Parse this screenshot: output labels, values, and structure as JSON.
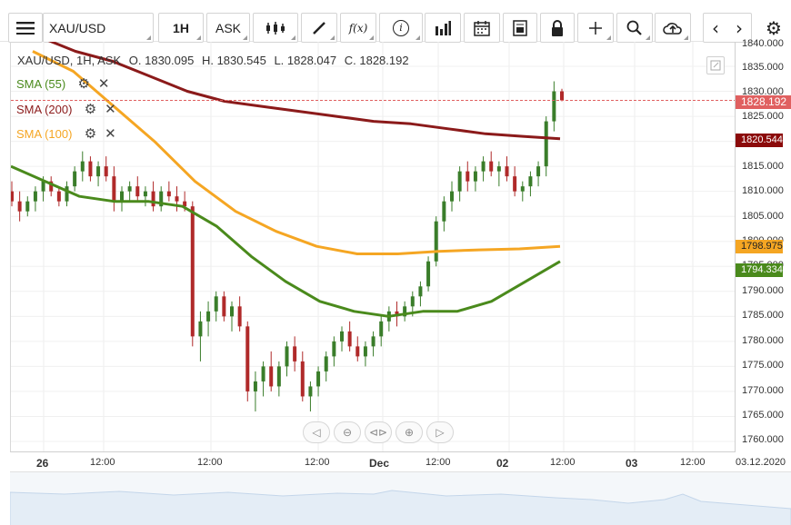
{
  "toolbar": {
    "symbol": "XAU/USD",
    "timeframe": "1H",
    "price_side": "ASK",
    "function_label": "f(x)",
    "info_label": "i"
  },
  "ohlc": {
    "symbol_text": "XAU/USD, 1H, ASK",
    "open": "O. 1830.095",
    "high": "H. 1830.545",
    "low": "L. 1828.047",
    "close": "C. 1828.192"
  },
  "indicators": [
    {
      "name": "SMA (55)",
      "color": "#4a8a1c"
    },
    {
      "name": "SMA (200)",
      "color": "#8b1a1a"
    },
    {
      "name": "SMA (100)",
      "color": "#f5a623"
    }
  ],
  "price_axis": {
    "top_partial": "1840.000",
    "labels": [
      "1835.000",
      "1830.000",
      "1825.000",
      "1815.000",
      "1810.000",
      "1805.000",
      "1800.000",
      "1795.000",
      "1790.000",
      "1785.000",
      "1780.000",
      "1775.000",
      "1770.000",
      "1765.000",
      "1760.000"
    ],
    "tags": [
      {
        "text": "1828.192",
        "color": "#e06060"
      },
      {
        "text": "1820.544",
        "color": "#8b0a0a"
      },
      {
        "text": "1798.975",
        "color": "#f5a623"
      },
      {
        "text": "1794.334",
        "color": "#4a8a1c"
      }
    ]
  },
  "time_axis": {
    "labels": [
      {
        "text": "26",
        "bold": true
      },
      {
        "text": "12:00",
        "bold": false
      },
      {
        "text": "12:00",
        "bold": false
      },
      {
        "text": "12:00",
        "bold": false
      },
      {
        "text": "Dec",
        "bold": true
      },
      {
        "text": "12:00",
        "bold": false
      },
      {
        "text": "02",
        "bold": true
      },
      {
        "text": "12:00",
        "bold": false
      },
      {
        "text": "03",
        "bold": true
      },
      {
        "text": "12:00",
        "bold": false
      },
      {
        "text": "03.12.2020",
        "bold": false
      }
    ]
  },
  "chart_data": {
    "type": "candlestick",
    "ylim": [
      1760,
      1840
    ],
    "candles_ohlc": [
      [
        1810,
        1812,
        1807,
        1808
      ],
      [
        1808,
        1810,
        1804,
        1806
      ],
      [
        1806,
        1809,
        1805,
        1808
      ],
      [
        1808,
        1811,
        1806,
        1810
      ],
      [
        1810,
        1813,
        1808,
        1812
      ],
      [
        1812,
        1813,
        1809,
        1810
      ],
      [
        1810,
        1811,
        1807,
        1808
      ],
      [
        1808,
        1812,
        1807,
        1811
      ],
      [
        1811,
        1815,
        1810,
        1814
      ],
      [
        1814,
        1818,
        1812,
        1816
      ],
      [
        1816,
        1817,
        1812,
        1813
      ],
      [
        1813,
        1816,
        1811,
        1815
      ],
      [
        1815,
        1817,
        1812,
        1813
      ],
      [
        1813,
        1815,
        1806,
        1808
      ],
      [
        1808,
        1811,
        1806,
        1810
      ],
      [
        1810,
        1812,
        1808,
        1811
      ],
      [
        1811,
        1813,
        1808,
        1809
      ],
      [
        1809,
        1811,
        1807,
        1810
      ],
      [
        1810,
        1812,
        1806,
        1807
      ],
      [
        1807,
        1811,
        1806,
        1810
      ],
      [
        1810,
        1812,
        1808,
        1809
      ],
      [
        1809,
        1811,
        1806,
        1808
      ],
      [
        1808,
        1810,
        1806,
        1807
      ],
      [
        1807,
        1808,
        1779,
        1781
      ],
      [
        1781,
        1786,
        1776,
        1784
      ],
      [
        1784,
        1788,
        1781,
        1786
      ],
      [
        1786,
        1790,
        1784,
        1789
      ],
      [
        1789,
        1790,
        1784,
        1785
      ],
      [
        1785,
        1788,
        1782,
        1787
      ],
      [
        1787,
        1789,
        1782,
        1783
      ],
      [
        1783,
        1784,
        1768,
        1770
      ],
      [
        1770,
        1774,
        1766,
        1772
      ],
      [
        1772,
        1776,
        1769,
        1775
      ],
      [
        1775,
        1778,
        1770,
        1771
      ],
      [
        1771,
        1776,
        1769,
        1775
      ],
      [
        1775,
        1780,
        1773,
        1779
      ],
      [
        1779,
        1781,
        1774,
        1776
      ],
      [
        1776,
        1778,
        1768,
        1769
      ],
      [
        1769,
        1772,
        1766,
        1771
      ],
      [
        1771,
        1775,
        1769,
        1774
      ],
      [
        1774,
        1778,
        1772,
        1777
      ],
      [
        1777,
        1781,
        1775,
        1780
      ],
      [
        1780,
        1783,
        1778,
        1782
      ],
      [
        1782,
        1784,
        1778,
        1779
      ],
      [
        1779,
        1781,
        1776,
        1777
      ],
      [
        1777,
        1780,
        1775,
        1779
      ],
      [
        1779,
        1782,
        1777,
        1781
      ],
      [
        1781,
        1785,
        1779,
        1784
      ],
      [
        1784,
        1787,
        1782,
        1786
      ],
      [
        1786,
        1788,
        1783,
        1785
      ],
      [
        1785,
        1788,
        1784,
        1787
      ],
      [
        1787,
        1790,
        1785,
        1789
      ],
      [
        1789,
        1792,
        1787,
        1791
      ],
      [
        1791,
        1797,
        1790,
        1796
      ],
      [
        1796,
        1805,
        1795,
        1804
      ],
      [
        1804,
        1809,
        1802,
        1808
      ],
      [
        1808,
        1812,
        1806,
        1810
      ],
      [
        1810,
        1815,
        1808,
        1814
      ],
      [
        1814,
        1816,
        1810,
        1812
      ],
      [
        1812,
        1815,
        1810,
        1814
      ],
      [
        1814,
        1817,
        1812,
        1816
      ],
      [
        1816,
        1818,
        1813,
        1814
      ],
      [
        1814,
        1816,
        1811,
        1815
      ],
      [
        1815,
        1817,
        1812,
        1813
      ],
      [
        1813,
        1815,
        1809,
        1810
      ],
      [
        1810,
        1812,
        1808,
        1811
      ],
      [
        1811,
        1814,
        1809,
        1813
      ],
      [
        1813,
        1816,
        1811,
        1815
      ],
      [
        1815,
        1825,
        1813,
        1824
      ],
      [
        1824,
        1832,
        1822,
        1830
      ],
      [
        1830,
        1830.5,
        1828,
        1828.2
      ]
    ],
    "sma55": [
      1815,
      1812,
      1809,
      1808,
      1808,
      1807,
      1803,
      1797,
      1792,
      1788,
      1786,
      1785,
      1786,
      1786,
      1788,
      1792,
      1796
    ],
    "sma200": [
      1841,
      1838,
      1836,
      1833,
      1830,
      1828,
      1827,
      1826,
      1825,
      1824,
      1823.5,
      1822.5,
      1821.5,
      1821,
      1820.5
    ],
    "sma100": [
      1838,
      1834,
      1827,
      1820,
      1812,
      1806,
      1802,
      1799,
      1797.5,
      1797.5,
      1798,
      1798.3,
      1798.5,
      1799
    ]
  }
}
